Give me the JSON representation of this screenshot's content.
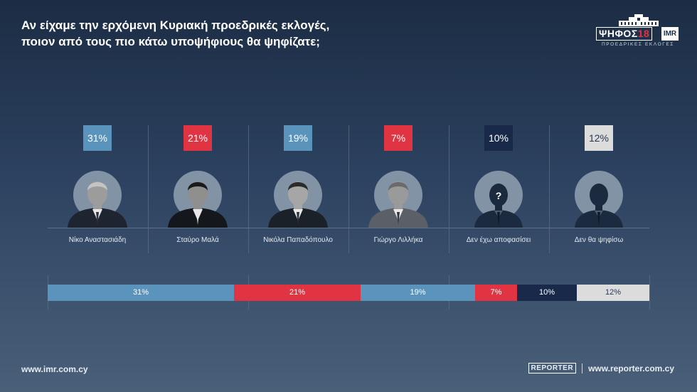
{
  "header": {
    "question_line1": "Αν είχαμε την ερχόμενη Κυριακή προεδρικές εκλογές,",
    "question_line2": "ποιον από τους πιο κάτω υποψήφιους θα ψηφίζατε;"
  },
  "logo": {
    "word": "ΨΗΦΟΣ",
    "year": "18",
    "partner": "IMR",
    "subtitle": "ΠΡΟΕΔΡΙΚΕΣ ΕΚΛΟΓΕΣ"
  },
  "footer": {
    "left_url": "www.imr.com.cy",
    "right_brand": "REPORTER",
    "right_url": "www.reporter.com.cy"
  },
  "colors": {
    "light_blue": "#5a93bb",
    "red": "#e03443",
    "navy": "#18294a",
    "light_gray": "#dcdcdc"
  },
  "chart_data": {
    "type": "bar",
    "categories": [
      "Νίκο Αναστασιάδη",
      "Σταύρο Μαλά",
      "Νικόλα Παπαδόπουλο",
      "Γιώργο Λιλλήκα",
      "Δεν έχω αποφασίσει",
      "Δεν θα ψηφίσω"
    ],
    "values": [
      31,
      21,
      19,
      7,
      10,
      12
    ],
    "labels": [
      "31%",
      "21%",
      "19%",
      "7%",
      "10%",
      "12%"
    ],
    "colors": [
      "#5a93bb",
      "#e03443",
      "#5a93bb",
      "#e03443",
      "#18294a",
      "#dcdcdc"
    ],
    "icons": [
      "candidate-photo",
      "candidate-photo",
      "candidate-photo",
      "candidate-photo",
      "undecided-silhouette-icon",
      "silhouette-icon"
    ],
    "title": "Αν είχαμε την ερχόμενη Κυριακή προεδρικές εκλογές, ποιον από τους πιο κάτω υποψήφιους θα ψηφίζατε;",
    "stacked_total": 100
  }
}
